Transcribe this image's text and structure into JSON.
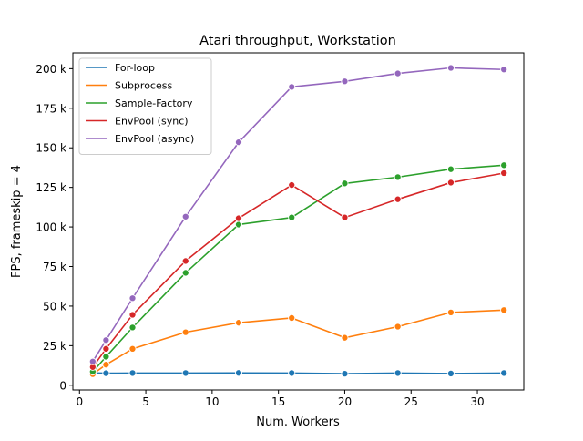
{
  "chart_data": {
    "type": "line",
    "title": "Atari throughput, Workstation",
    "xlabel": "Num. Workers",
    "ylabel": "FPS, frameskip = 4",
    "xlim": [
      -0.5,
      33.5
    ],
    "ylim": [
      -3000,
      210000
    ],
    "x_ticks": [
      0,
      5,
      10,
      15,
      20,
      25,
      30
    ],
    "y_ticks": [
      {
        "value": 0,
        "label": "0"
      },
      {
        "value": 25000,
        "label": "25 k"
      },
      {
        "value": 50000,
        "label": "50 k"
      },
      {
        "value": 75000,
        "label": "75 k"
      },
      {
        "value": 100000,
        "label": "100 k"
      },
      {
        "value": 125000,
        "label": "125 k"
      },
      {
        "value": 150000,
        "label": "150 k"
      },
      {
        "value": 175000,
        "label": "175 k"
      },
      {
        "value": 200000,
        "label": "200 k"
      }
    ],
    "grid": false,
    "legend_position": "top-left",
    "x": [
      1,
      2,
      4,
      8,
      12,
      16,
      20,
      24,
      28,
      32
    ],
    "series": [
      {
        "name": "For-loop",
        "color": "#1f77b4",
        "values": [
          7800,
          7600,
          7700,
          7700,
          7800,
          7700,
          7300,
          7700,
          7400,
          7700
        ]
      },
      {
        "name": "Subprocess",
        "color": "#ff7f0e",
        "values": [
          7000,
          13000,
          23000,
          33500,
          39500,
          42500,
          30000,
          37000,
          46000,
          47500
        ]
      },
      {
        "name": "Sample-Factory",
        "color": "#2ca02c",
        "values": [
          8500,
          18000,
          36500,
          71000,
          101500,
          106000,
          127500,
          131500,
          136500,
          139000
        ]
      },
      {
        "name": "EnvPool (sync)",
        "color": "#d62728",
        "values": [
          11500,
          23000,
          44500,
          78500,
          105500,
          126500,
          106000,
          117500,
          128000,
          134000
        ]
      },
      {
        "name": "EnvPool (async)",
        "color": "#9467bd",
        "values": [
          15000,
          28500,
          55000,
          106500,
          153500,
          188500,
          192000,
          197000,
          200500,
          199500
        ]
      }
    ]
  }
}
